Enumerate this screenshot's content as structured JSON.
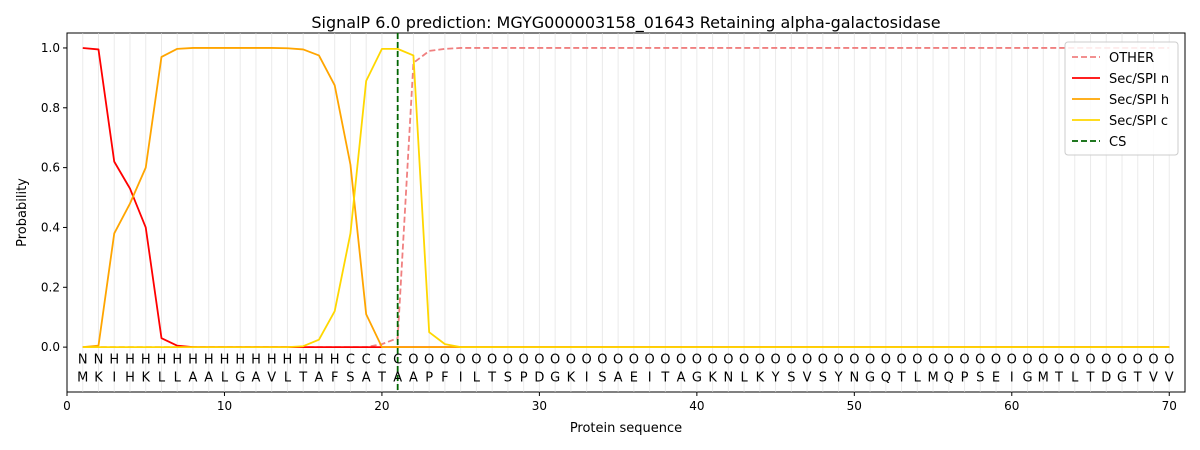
{
  "chart_data": {
    "type": "line",
    "title": "SignalP 6.0 prediction: MGYG000003158_01643 Retaining alpha-galactosidase",
    "xlabel": "Protein sequence",
    "ylabel": "Probability",
    "xlim": [
      0,
      71
    ],
    "ylim": [
      -0.15,
      1.05
    ],
    "xticks": [
      0,
      10,
      20,
      30,
      40,
      50,
      60,
      70
    ],
    "yticks": [
      0.0,
      0.2,
      0.4,
      0.6,
      0.8,
      1.0
    ],
    "x_tick_labels": [
      "0",
      "10",
      "20",
      "30",
      "40",
      "50",
      "60",
      "70"
    ],
    "y_tick_labels": [
      "0.0",
      "0.2",
      "0.4",
      "0.6",
      "0.8",
      "1.0"
    ],
    "legend_position": "top-right",
    "sequence": [
      "M",
      "K",
      "I",
      "H",
      "K",
      "L",
      "L",
      "A",
      "A",
      "L",
      "G",
      "A",
      "V",
      "L",
      "T",
      "A",
      "F",
      "S",
      "A",
      "T",
      "A",
      "A",
      "P",
      "F",
      "I",
      "L",
      "T",
      "S",
      "P",
      "D",
      "G",
      "K",
      "I",
      "S",
      "A",
      "E",
      "I",
      "T",
      "A",
      "G",
      "K",
      "N",
      "L",
      "K",
      "Y",
      "S",
      "V",
      "S",
      "Y",
      "N",
      "G",
      "Q",
      "T",
      "L",
      "M",
      "Q",
      "P",
      "S",
      "E",
      "I",
      "G",
      "M",
      "T",
      "L",
      "T",
      "D",
      "G",
      "T",
      "V",
      "V"
    ],
    "labels": [
      "N",
      "N",
      "H",
      "H",
      "H",
      "H",
      "H",
      "H",
      "H",
      "H",
      "H",
      "H",
      "H",
      "H",
      "H",
      "H",
      "H",
      "C",
      "C",
      "C",
      "C",
      "O",
      "O",
      "O",
      "O",
      "O",
      "O",
      "O",
      "O",
      "O",
      "O",
      "O",
      "O",
      "O",
      "O",
      "O",
      "O",
      "O",
      "O",
      "O",
      "O",
      "O",
      "O",
      "O",
      "O",
      "O",
      "O",
      "O",
      "O",
      "O",
      "O",
      "O",
      "O",
      "O",
      "O",
      "O",
      "O",
      "O",
      "O",
      "O",
      "O",
      "O",
      "O",
      "O",
      "O",
      "O",
      "O",
      "O",
      "O",
      "O"
    ],
    "label_colors": {
      "N": "#ff0000",
      "H": "#ffa500",
      "C": "#ffd700",
      "O": "#808080"
    },
    "series": [
      {
        "name": "OTHER",
        "color": "#f08080",
        "dash": true,
        "values": [
          0,
          0,
          0,
          0,
          0,
          0,
          0,
          0,
          0,
          0,
          0,
          0,
          0,
          0,
          0,
          0,
          0,
          0,
          0,
          0.01,
          0.03,
          0.95,
          0.99,
          0.997,
          1,
          1,
          1,
          1,
          1,
          1,
          1,
          1,
          1,
          1,
          1,
          1,
          1,
          1,
          1,
          1,
          1,
          1,
          1,
          1,
          1,
          1,
          1,
          1,
          1,
          1,
          1,
          1,
          1,
          1,
          1,
          1,
          1,
          1,
          1,
          1,
          1,
          1,
          1,
          1,
          1,
          1,
          1,
          1,
          1,
          1
        ]
      },
      {
        "name": "Sec/SPI n",
        "color": "#ff0000",
        "dash": false,
        "values": [
          1.0,
          0.995,
          0.62,
          0.53,
          0.4,
          0.03,
          0.005,
          0,
          0,
          0,
          0,
          0,
          0,
          0,
          0,
          0,
          0,
          0,
          0,
          0,
          0,
          0,
          0,
          0,
          0,
          0,
          0,
          0,
          0,
          0,
          0,
          0,
          0,
          0,
          0,
          0,
          0,
          0,
          0,
          0,
          0,
          0,
          0,
          0,
          0,
          0,
          0,
          0,
          0,
          0,
          0,
          0,
          0,
          0,
          0,
          0,
          0,
          0,
          0,
          0,
          0,
          0,
          0,
          0,
          0,
          0,
          0,
          0,
          0,
          0
        ]
      },
      {
        "name": "Sec/SPI h",
        "color": "#ffa500",
        "dash": false,
        "values": [
          0,
          0.005,
          0.38,
          0.48,
          0.6,
          0.97,
          0.997,
          1.0,
          1.0,
          1.0,
          1.0,
          1.0,
          1.0,
          0.999,
          0.995,
          0.975,
          0.875,
          0.61,
          0.11,
          0,
          0,
          0,
          0,
          0,
          0,
          0,
          0,
          0,
          0,
          0,
          0,
          0,
          0,
          0,
          0,
          0,
          0,
          0,
          0,
          0,
          0,
          0,
          0,
          0,
          0,
          0,
          0,
          0,
          0,
          0,
          0,
          0,
          0,
          0,
          0,
          0,
          0,
          0,
          0,
          0,
          0,
          0,
          0,
          0,
          0,
          0,
          0,
          0,
          0,
          0
        ]
      },
      {
        "name": "Sec/SPI c",
        "color": "#ffd700",
        "dash": false,
        "values": [
          0,
          0,
          0,
          0,
          0,
          0,
          0,
          0,
          0,
          0,
          0,
          0,
          0,
          0,
          0.003,
          0.025,
          0.12,
          0.38,
          0.89,
          0.997,
          0.997,
          0.975,
          0.05,
          0.01,
          0,
          0,
          0,
          0,
          0,
          0,
          0,
          0,
          0,
          0,
          0,
          0,
          0,
          0,
          0,
          0,
          0,
          0,
          0,
          0,
          0,
          0,
          0,
          0,
          0,
          0,
          0,
          0,
          0,
          0,
          0,
          0,
          0,
          0,
          0,
          0,
          0,
          0,
          0,
          0,
          0,
          0,
          0,
          0,
          0,
          0
        ]
      }
    ],
    "cleavage_site": {
      "name": "CS",
      "x": 21,
      "color": "#006400"
    }
  }
}
